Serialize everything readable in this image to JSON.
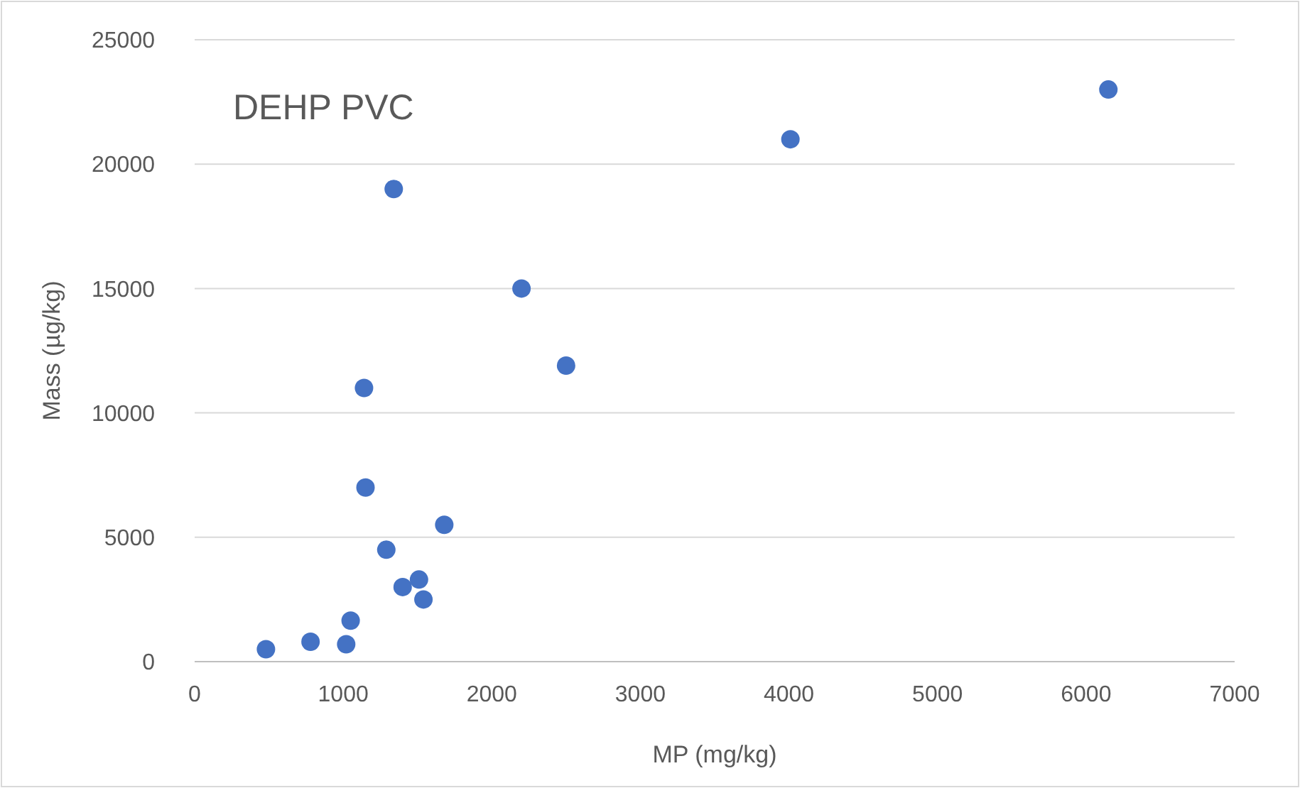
{
  "chart_data": {
    "type": "scatter",
    "title": "DEHP PVC",
    "xlabel": "MP (mg/kg)",
    "ylabel": "Mass (µg/kg)",
    "x": [
      480,
      780,
      1020,
      1050,
      1140,
      1150,
      1290,
      1340,
      1400,
      1510,
      1540,
      1680,
      2200,
      2500,
      4010,
      6150
    ],
    "values": [
      500,
      800,
      700,
      1650,
      11000,
      7000,
      4500,
      19000,
      3000,
      3300,
      2500,
      5500,
      15000,
      11900,
      21000,
      23000
    ],
    "color": "#4472c4",
    "marker": "circle",
    "xlim": [
      0,
      7000
    ],
    "xticks": [
      0,
      1000,
      2000,
      3000,
      4000,
      5000,
      6000,
      7000
    ],
    "ylim": [
      0,
      25000
    ],
    "yticks": [
      0,
      5000,
      10000,
      15000,
      20000,
      25000
    ],
    "grid": "y"
  }
}
